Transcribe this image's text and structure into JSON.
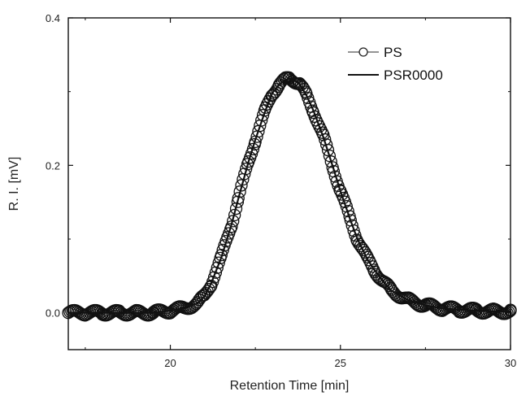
{
  "chart_data": {
    "type": "scatter",
    "title": "",
    "xlabel": "Retention Time [min]",
    "ylabel": "R. I. [mV]",
    "xlim": [
      17,
      30
    ],
    "ylim": [
      -0.05,
      0.4
    ],
    "xticks": [
      20,
      25,
      30
    ],
    "xtick_labels": [
      "20",
      "25",
      "30"
    ],
    "yticks": [
      0.0,
      0.2,
      0.4
    ],
    "ytick_labels": [
      "0.0",
      "0.2",
      "0.4"
    ],
    "grid": false,
    "legend_position": "top-right",
    "series": [
      {
        "name": "PS",
        "style": "open-circles",
        "color": "#111111",
        "x": [
          17.0,
          17.5,
          18.0,
          18.5,
          19.0,
          19.5,
          20.0,
          20.4,
          20.8,
          21.0,
          21.2,
          21.5,
          21.8,
          22.0,
          22.3,
          22.5,
          22.8,
          23.0,
          23.2,
          23.4,
          23.5,
          23.6,
          23.8,
          24.0,
          24.2,
          24.5,
          24.8,
          25.0,
          25.3,
          25.5,
          25.8,
          26.0,
          26.3,
          26.5,
          27.0,
          27.5,
          28.0,
          28.5,
          29.0,
          29.5,
          30.0
        ],
        "y": [
          0.0,
          0.0,
          0.0,
          0.0,
          0.0,
          0.0,
          0.003,
          0.006,
          0.013,
          0.022,
          0.04,
          0.075,
          0.12,
          0.155,
          0.205,
          0.235,
          0.275,
          0.298,
          0.31,
          0.316,
          0.318,
          0.317,
          0.31,
          0.295,
          0.275,
          0.238,
          0.195,
          0.165,
          0.125,
          0.1,
          0.072,
          0.058,
          0.04,
          0.03,
          0.017,
          0.01,
          0.006,
          0.004,
          0.003,
          0.002,
          0.002
        ]
      },
      {
        "name": "PSR0000",
        "style": "solid-line",
        "color": "#111111",
        "x": [
          17.0,
          17.5,
          18.0,
          18.5,
          19.0,
          19.5,
          20.0,
          20.4,
          20.8,
          21.0,
          21.2,
          21.5,
          21.8,
          22.0,
          22.3,
          22.5,
          22.8,
          23.0,
          23.2,
          23.4,
          23.5,
          23.6,
          23.8,
          24.0,
          24.2,
          24.5,
          24.8,
          25.0,
          25.3,
          25.5,
          25.8,
          26.0,
          26.3,
          26.5,
          27.0,
          27.5,
          28.0,
          28.5,
          29.0,
          29.5,
          30.0
        ],
        "y": [
          0.0,
          0.0,
          0.0,
          0.0,
          0.0,
          0.0,
          0.003,
          0.006,
          0.013,
          0.022,
          0.04,
          0.075,
          0.12,
          0.155,
          0.205,
          0.235,
          0.275,
          0.298,
          0.31,
          0.316,
          0.318,
          0.317,
          0.31,
          0.295,
          0.275,
          0.238,
          0.195,
          0.165,
          0.125,
          0.1,
          0.072,
          0.058,
          0.04,
          0.03,
          0.017,
          0.01,
          0.006,
          0.004,
          0.003,
          0.002,
          0.002
        ]
      }
    ]
  }
}
